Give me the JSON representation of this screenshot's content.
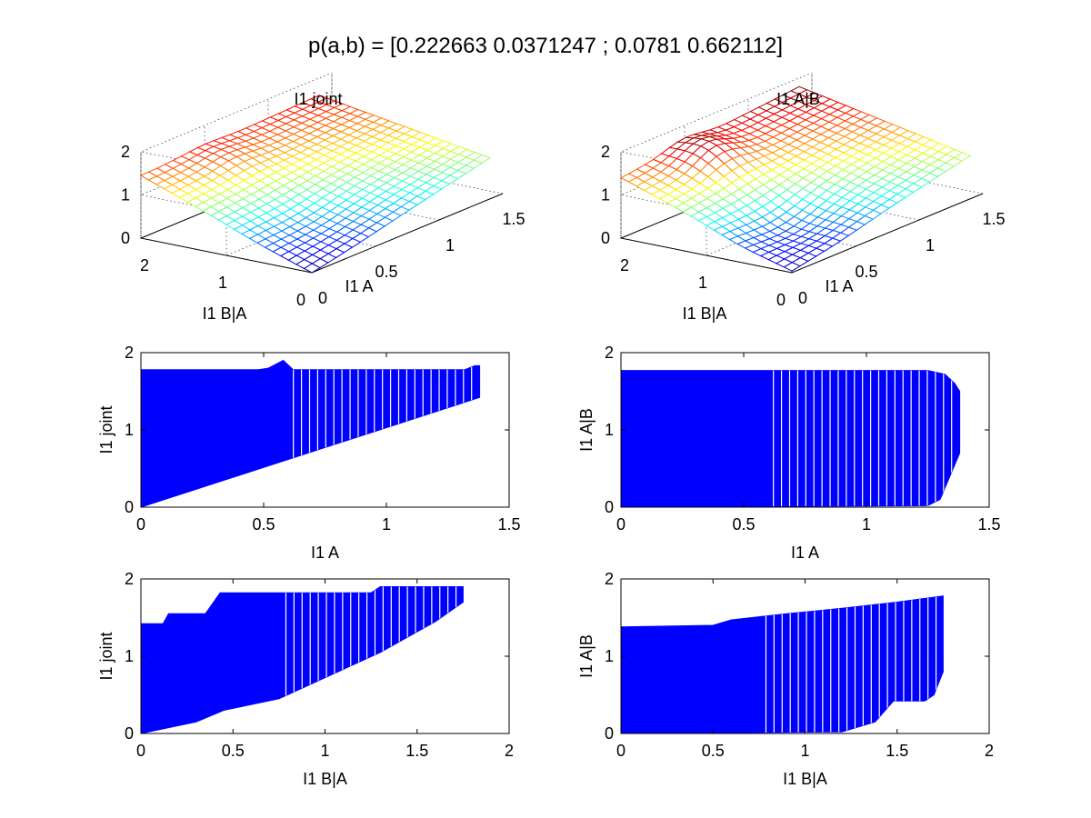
{
  "figure_title": "p(a,b) = [0.222663 0.0371247 ; 0.0781 0.662112]",
  "chart_data": [
    {
      "type": "surface",
      "title": "I1 joint",
      "xlabel": "I1 A",
      "ylabel": "I1 B|A",
      "xlim": [
        0,
        1.5
      ],
      "ylim": [
        0,
        2
      ],
      "zlim": [
        0,
        2
      ],
      "xticks": [
        "0",
        "0.5",
        "1",
        "1.5"
      ],
      "yticks": [
        "0",
        "1",
        "2"
      ],
      "zticks": [
        "0",
        "1",
        "2"
      ],
      "colormap": "jet",
      "grid": true,
      "z_corners": {
        "a0_b0": 0.0,
        "a0_b2": 1.45,
        "a1p4_b0": 0.95,
        "a1p4_b2": 1.6
      }
    },
    {
      "type": "surface",
      "title": "I1 A|B",
      "xlabel": "I1 A",
      "ylabel": "I1 B|A",
      "xlim": [
        0,
        1.5
      ],
      "ylim": [
        0,
        2
      ],
      "zlim": [
        0,
        2
      ],
      "xticks": [
        "0",
        "0.5",
        "1",
        "1.5"
      ],
      "yticks": [
        "0",
        "1",
        "2"
      ],
      "zticks": [
        "0",
        "1",
        "2"
      ],
      "colormap": "jet",
      "grid": true,
      "z_corners": {
        "a0_b0": 0.05,
        "a0_b2": 1.4,
        "a1p4_b0": 1.0,
        "a1p4_b2": 1.8
      }
    },
    {
      "type": "scatter",
      "title": "",
      "xlabel": "I1 A",
      "ylabel": "I1 joint",
      "xlim": [
        0,
        1.5
      ],
      "ylim": [
        0,
        2
      ],
      "xticks": [
        "0",
        "0.5",
        "1",
        "1.5"
      ],
      "yticks": [
        "0",
        "1",
        "2"
      ],
      "color": "#0000ff",
      "series": [
        {
          "type": "filled_region",
          "lower": [
            [
              0,
              0
            ],
            [
              1.38,
              1.42
            ]
          ],
          "upper": [
            [
              0,
              1.78
            ],
            [
              0.48,
              1.78
            ],
            [
              0.52,
              1.8
            ],
            [
              0.58,
              1.9
            ],
            [
              0.62,
              1.78
            ],
            [
              1.32,
              1.78
            ],
            [
              1.36,
              1.83
            ],
            [
              1.38,
              1.83
            ]
          ]
        }
      ]
    },
    {
      "type": "scatter",
      "title": "",
      "xlabel": "I1 A",
      "ylabel": "I1 A|B",
      "xlim": [
        0,
        1.5
      ],
      "ylim": [
        0,
        2
      ],
      "xticks": [
        "0",
        "0.5",
        "1",
        "1.5"
      ],
      "yticks": [
        "0",
        "1",
        "2"
      ],
      "color": "#0000ff",
      "series": [
        {
          "type": "filled_region",
          "lower": [
            [
              0,
              0
            ],
            [
              1.25,
              0.02
            ],
            [
              1.3,
              0.1
            ],
            [
              1.34,
              0.4
            ],
            [
              1.38,
              0.7
            ]
          ],
          "upper": [
            [
              0,
              1.77
            ],
            [
              1.25,
              1.77
            ],
            [
              1.32,
              1.72
            ],
            [
              1.36,
              1.6
            ],
            [
              1.38,
              1.5
            ]
          ]
        }
      ]
    },
    {
      "type": "scatter",
      "title": "",
      "xlabel": "I1 B|A",
      "ylabel": "I1 joint",
      "xlim": [
        0,
        2
      ],
      "ylim": [
        0,
        2
      ],
      "xticks": [
        "0",
        "0.5",
        "1",
        "1.5",
        "2"
      ],
      "yticks": [
        "0",
        "1",
        "2"
      ],
      "color": "#0000ff",
      "series": [
        {
          "type": "filled_region",
          "lower": [
            [
              0,
              0
            ],
            [
              0.3,
              0.15
            ],
            [
              0.45,
              0.3
            ],
            [
              0.75,
              0.45
            ],
            [
              1.3,
              1.05
            ],
            [
              1.6,
              1.45
            ],
            [
              1.75,
              1.7
            ]
          ],
          "upper": [
            [
              0,
              1.42
            ],
            [
              0.12,
              1.42
            ],
            [
              0.15,
              1.55
            ],
            [
              0.35,
              1.55
            ],
            [
              0.43,
              1.82
            ],
            [
              1.25,
              1.82
            ],
            [
              1.3,
              1.9
            ],
            [
              1.75,
              1.9
            ]
          ]
        }
      ]
    },
    {
      "type": "scatter",
      "title": "",
      "xlabel": "I1 B|A",
      "ylabel": "I1 A|B",
      "xlim": [
        0,
        2
      ],
      "ylim": [
        0,
        2
      ],
      "xticks": [
        "0",
        "0.5",
        "1",
        "1.5",
        "2"
      ],
      "yticks": [
        "0",
        "1",
        "2"
      ],
      "color": "#0000ff",
      "series": [
        {
          "type": "filled_region",
          "lower": [
            [
              0,
              0
            ],
            [
              1.2,
              0.02
            ],
            [
              1.38,
              0.15
            ],
            [
              1.48,
              0.42
            ],
            [
              1.65,
              0.42
            ],
            [
              1.7,
              0.5
            ],
            [
              1.72,
              0.62
            ],
            [
              1.75,
              0.8
            ]
          ],
          "upper": [
            [
              0,
              1.38
            ],
            [
              0.5,
              1.4
            ],
            [
              0.6,
              1.47
            ],
            [
              0.9,
              1.55
            ],
            [
              1.2,
              1.62
            ],
            [
              1.5,
              1.7
            ],
            [
              1.75,
              1.78
            ]
          ]
        }
      ]
    }
  ]
}
